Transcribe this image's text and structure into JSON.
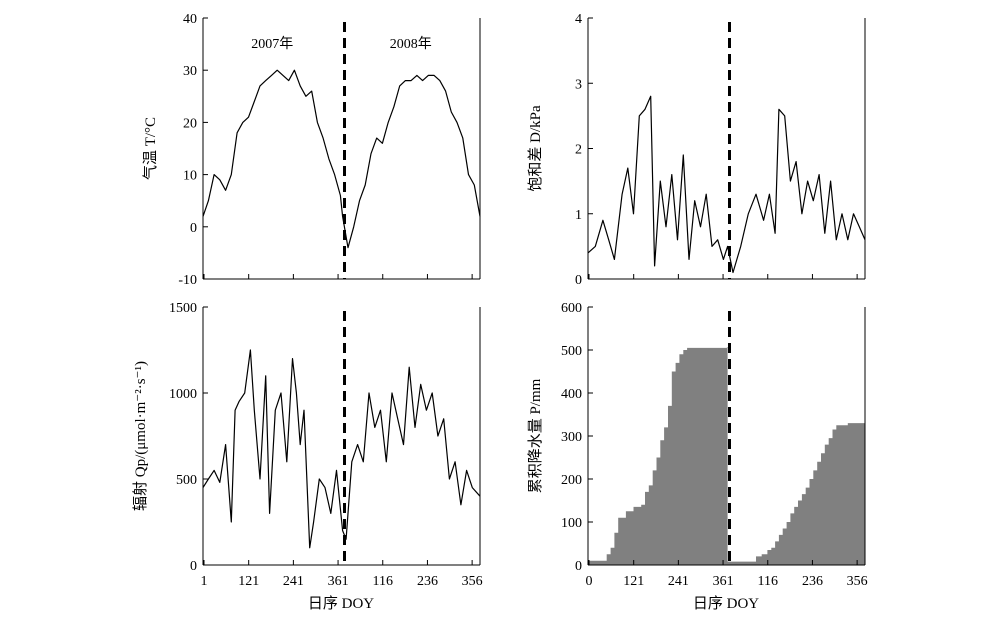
{
  "chart_data": [
    {
      "panel": "air-temperature",
      "type": "line",
      "ylabel": "气温 T/°C",
      "ylim": [
        -10,
        40
      ],
      "yticks": [
        -10,
        0,
        10,
        20,
        30,
        40
      ],
      "xticks": [],
      "year_labels": [
        "2007年",
        "2008年"
      ],
      "divider_x": 0.5,
      "x": [
        1,
        15,
        30,
        45,
        60,
        75,
        90,
        105,
        120,
        135,
        150,
        165,
        180,
        195,
        210,
        225,
        240,
        255,
        270,
        285,
        300,
        315,
        330,
        345,
        360,
        366,
        380,
        395,
        410,
        425,
        440,
        455,
        470,
        485,
        500,
        515,
        530,
        545,
        560,
        575,
        590,
        605,
        620,
        635,
        650,
        665,
        680,
        695,
        710,
        725
      ],
      "values": [
        2,
        5,
        10,
        9,
        7,
        10,
        18,
        20,
        21,
        24,
        27,
        28,
        29,
        30,
        29,
        28,
        30,
        27,
        25,
        26,
        20,
        17,
        13,
        10,
        6,
        2,
        -4,
        0,
        5,
        8,
        14,
        17,
        16,
        20,
        23,
        27,
        28,
        28,
        29,
        28,
        29,
        29,
        28,
        26,
        22,
        20,
        17,
        10,
        8,
        2
      ]
    },
    {
      "panel": "vapor-pressure-deficit",
      "type": "line",
      "ylabel": "饱和差 D/kPa",
      "ylim": [
        0,
        4
      ],
      "yticks": [
        0,
        1,
        2,
        3,
        4
      ],
      "xticks": [],
      "divider_x": 0.5,
      "x": [
        1,
        20,
        40,
        55,
        70,
        90,
        105,
        120,
        135,
        150,
        165,
        175,
        190,
        205,
        220,
        235,
        250,
        265,
        280,
        295,
        310,
        325,
        340,
        355,
        366,
        380,
        400,
        420,
        440,
        460,
        475,
        490,
        500,
        515,
        530,
        545,
        560,
        575,
        590,
        605,
        620,
        635,
        650,
        665,
        680,
        695,
        710,
        725
      ],
      "values": [
        0.4,
        0.5,
        0.9,
        0.6,
        0.3,
        1.3,
        1.7,
        1.0,
        2.5,
        2.6,
        2.8,
        0.2,
        1.5,
        0.8,
        1.6,
        0.6,
        1.9,
        0.3,
        1.2,
        0.8,
        1.3,
        0.5,
        0.6,
        0.3,
        0.5,
        0.1,
        0.5,
        1.0,
        1.3,
        0.9,
        1.3,
        0.7,
        2.6,
        2.5,
        1.5,
        1.8,
        1.0,
        1.5,
        1.2,
        1.6,
        0.7,
        1.5,
        0.6,
        1.0,
        0.6,
        1.0,
        0.8,
        0.6
      ]
    },
    {
      "panel": "radiation",
      "type": "line",
      "ylabel": "辐射 Qp/(μmol·m⁻²·s⁻¹)",
      "ylim": [
        0,
        1500
      ],
      "yticks": [
        0,
        500,
        1000,
        1500
      ],
      "xticks": [
        "1",
        "121",
        "241",
        "361",
        "116",
        "236",
        "356"
      ],
      "divider_x": 0.5,
      "x": [
        1,
        15,
        30,
        45,
        60,
        75,
        85,
        95,
        110,
        125,
        135,
        150,
        165,
        175,
        190,
        205,
        220,
        235,
        245,
        255,
        265,
        280,
        290,
        305,
        320,
        335,
        350,
        366,
        375,
        390,
        405,
        420,
        435,
        450,
        465,
        480,
        495,
        510,
        525,
        540,
        555,
        570,
        585,
        600,
        615,
        630,
        645,
        660,
        675,
        690,
        705,
        725
      ],
      "values": [
        450,
        500,
        550,
        480,
        700,
        250,
        900,
        950,
        1000,
        1250,
        900,
        500,
        1100,
        300,
        900,
        1000,
        600,
        1200,
        1000,
        700,
        900,
        100,
        250,
        500,
        450,
        300,
        550,
        200,
        150,
        600,
        700,
        600,
        1000,
        800,
        900,
        600,
        1000,
        850,
        700,
        1150,
        800,
        1050,
        900,
        1000,
        750,
        850,
        500,
        600,
        350,
        550,
        450,
        400
      ]
    },
    {
      "panel": "cumulative-precipitation",
      "type": "area",
      "ylabel": "累积降水量 P/mm",
      "ylim": [
        0,
        600
      ],
      "yticks": [
        0,
        100,
        200,
        300,
        400,
        500,
        600
      ],
      "xticks": [
        "0",
        "121",
        "241",
        "361",
        "116",
        "236",
        "356"
      ],
      "divider_x": 0.5,
      "x": [
        0,
        40,
        50,
        60,
        70,
        80,
        100,
        120,
        140,
        150,
        160,
        170,
        180,
        190,
        200,
        210,
        220,
        230,
        240,
        250,
        260,
        300,
        364,
        366,
        400,
        425,
        440,
        455,
        470,
        480,
        490,
        500,
        510,
        520,
        530,
        540,
        550,
        560,
        570,
        580,
        590,
        600,
        610,
        620,
        630,
        640,
        650,
        680,
        725
      ],
      "values": [
        10,
        10,
        25,
        40,
        75,
        110,
        125,
        135,
        140,
        170,
        185,
        220,
        250,
        290,
        320,
        370,
        450,
        470,
        490,
        500,
        505,
        505,
        507,
        8,
        8,
        8,
        20,
        25,
        35,
        40,
        55,
        70,
        85,
        100,
        120,
        135,
        150,
        165,
        180,
        200,
        220,
        240,
        260,
        280,
        295,
        315,
        325,
        330,
        330
      ]
    }
  ],
  "xlabel": "日序 DOY"
}
